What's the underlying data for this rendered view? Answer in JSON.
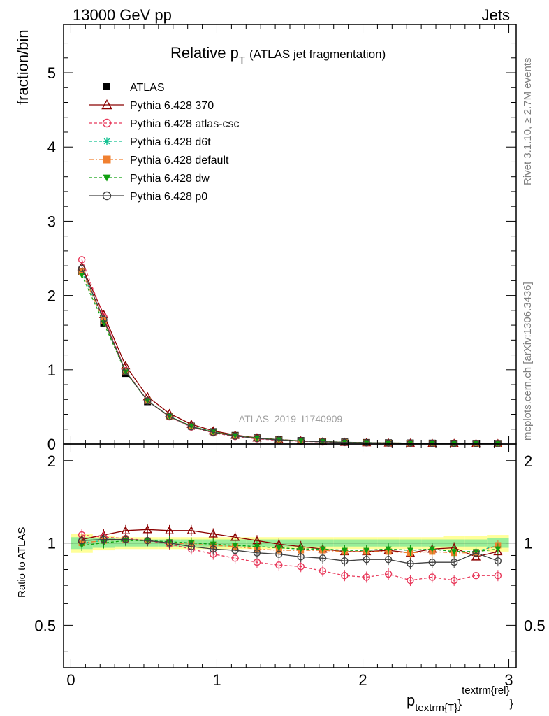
{
  "header": {
    "left_label": "13000 GeV pp",
    "right_label": "Jets"
  },
  "side_labels": {
    "top": "Rivet 3.1.10, ≥ 2.7M events",
    "bottom": "mcplots.cern.ch [arXiv:1306.3436]"
  },
  "watermark": "ATLAS_2019_I1740909",
  "chart_data": {
    "type": "line",
    "title_main": "Relative p",
    "title_sub": "T",
    "title_rest": "(ATLAS jet fragmentation)",
    "ylabel": "fraction/bin",
    "ratio_ylabel": "Ratio to ATLAS",
    "xlabel_main": "p",
    "xlabel_sub": "textrm{T}",
    "xlabel_sup": "textrm{rel}",
    "xlim": [
      -0.05,
      3.05
    ],
    "ylim_main": [
      0,
      5.65
    ],
    "ylim_ratio": [
      0.35,
      2.3
    ],
    "x_ticks": [
      0,
      1,
      2,
      3
    ],
    "y_ticks_main": [
      0,
      1,
      2,
      3,
      4,
      5
    ],
    "y_ticks_ratio": [
      0.5,
      1,
      2
    ],
    "x": [
      0.075,
      0.225,
      0.375,
      0.525,
      0.675,
      0.825,
      0.975,
      1.125,
      1.275,
      1.425,
      1.575,
      1.725,
      1.875,
      2.025,
      2.175,
      2.325,
      2.475,
      2.625,
      2.775,
      2.925
    ],
    "data_values": [
      2.32,
      1.63,
      0.95,
      0.57,
      0.37,
      0.24,
      0.165,
      0.115,
      0.082,
      0.06,
      0.045,
      0.034,
      0.026,
      0.02,
      0.016,
      0.013,
      0.011,
      0.009,
      0.0075,
      0.0065
    ],
    "band_inner": [
      0.05,
      0.04,
      0.03,
      0.03,
      0.03,
      0.03,
      0.03,
      0.03,
      0.03,
      0.03,
      0.03,
      0.03,
      0.03,
      0.03,
      0.03,
      0.03,
      0.03,
      0.03,
      0.03,
      0.04
    ],
    "band_outer": [
      0.08,
      0.06,
      0.05,
      0.05,
      0.05,
      0.05,
      0.05,
      0.05,
      0.05,
      0.05,
      0.05,
      0.05,
      0.05,
      0.05,
      0.05,
      0.05,
      0.05,
      0.06,
      0.06,
      0.07
    ],
    "series": [
      {
        "name": "ATLAS",
        "color": "#000000",
        "marker": "square",
        "dash": "none",
        "ratio": [
          1,
          1,
          1,
          1,
          1,
          1,
          1,
          1,
          1,
          1,
          1,
          1,
          1,
          1,
          1,
          1,
          1,
          1,
          1,
          1
        ]
      },
      {
        "name": "Pythia 6.428 370",
        "color": "#8b0000",
        "marker": "triangle-open",
        "dash": "none",
        "ratio": [
          1.03,
          1.07,
          1.11,
          1.12,
          1.11,
          1.11,
          1.08,
          1.05,
          1.02,
          0.99,
          0.97,
          0.95,
          0.93,
          0.93,
          0.94,
          0.92,
          0.95,
          0.96,
          0.89,
          0.93
        ]
      },
      {
        "name": "Pythia 6.428 atlas-csc",
        "color": "#e8385a",
        "marker": "circle-open",
        "dash": "4,3",
        "ratio": [
          1.07,
          1.05,
          1.04,
          1.02,
          0.99,
          0.95,
          0.91,
          0.88,
          0.85,
          0.83,
          0.82,
          0.79,
          0.76,
          0.75,
          0.77,
          0.73,
          0.75,
          0.73,
          0.76,
          0.76
        ]
      },
      {
        "name": "Pythia 6.428 d6t",
        "color": "#10c090",
        "marker": "star",
        "dash": "4,3",
        "ratio": [
          1.0,
          1.02,
          1.03,
          1.02,
          1.01,
          1.0,
          0.99,
          0.98,
          0.97,
          0.96,
          0.95,
          0.95,
          0.94,
          0.94,
          0.95,
          0.94,
          0.95,
          0.93,
          0.93,
          0.98
        ]
      },
      {
        "name": "Pythia 6.428 default",
        "color": "#f08030",
        "marker": "square",
        "dash": "6,3,2,3",
        "ratio": [
          1.0,
          1.02,
          1.03,
          1.02,
          1.0,
          0.99,
          0.98,
          0.97,
          0.95,
          0.94,
          0.94,
          0.94,
          0.93,
          0.93,
          0.93,
          0.92,
          0.93,
          0.92,
          0.92,
          0.98
        ]
      },
      {
        "name": "Pythia 6.428 dw",
        "color": "#10a010",
        "marker": "triangle-down",
        "dash": "4,3",
        "ratio": [
          0.98,
          1.0,
          1.02,
          1.02,
          1.01,
          1.0,
          0.99,
          0.98,
          0.97,
          0.96,
          0.95,
          0.95,
          0.94,
          0.94,
          0.95,
          0.94,
          0.95,
          0.93,
          0.93,
          0.95
        ]
      },
      {
        "name": "Pythia 6.428 p0",
        "color": "#404040",
        "marker": "circle-open",
        "dash": "none",
        "ratio": [
          1.02,
          1.03,
          1.03,
          1.02,
          1.0,
          0.97,
          0.95,
          0.94,
          0.92,
          0.91,
          0.89,
          0.88,
          0.86,
          0.87,
          0.87,
          0.84,
          0.85,
          0.85,
          0.92,
          0.86
        ]
      }
    ]
  }
}
